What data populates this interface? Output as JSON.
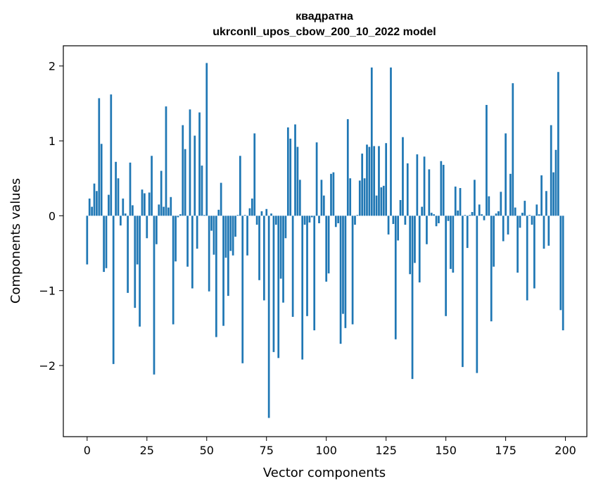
{
  "chart_data": {
    "type": "bar",
    "title_lines": [
      "квадратна",
      "ukrconll_upos_cbow_200_10_2022 model"
    ],
    "xlabel": "Vector components",
    "ylabel": "Components values",
    "xlim": [
      -9.95,
      208.95
    ],
    "ylim": [
      -2.95,
      2.27
    ],
    "xticks": [
      0,
      25,
      50,
      75,
      100,
      125,
      150,
      175,
      200
    ],
    "xtick_labels": [
      "0",
      "25",
      "50",
      "75",
      "100",
      "125",
      "150",
      "175",
      "200"
    ],
    "yticks": [
      -2,
      -1,
      0,
      1,
      2
    ],
    "ytick_labels": [
      "−2",
      "−1",
      "0",
      "1",
      "2"
    ],
    "bar_color": "#1f77b4",
    "values": [
      -0.65,
      0.23,
      0.12,
      0.43,
      0.33,
      1.57,
      0.96,
      -0.75,
      -0.7,
      0.28,
      1.62,
      -1.98,
      0.72,
      0.5,
      -0.13,
      0.23,
      0.03,
      -1.03,
      0.71,
      0.14,
      -1.23,
      -0.65,
      -1.48,
      0.35,
      0.3,
      -0.3,
      0.31,
      0.8,
      -2.12,
      -0.38,
      0.15,
      0.6,
      0.12,
      1.46,
      0.11,
      0.25,
      -1.45,
      -0.61,
      -0.02,
      0.02,
      1.21,
      0.89,
      -0.68,
      1.42,
      -0.97,
      1.07,
      -0.44,
      1.38,
      0.67,
      0.01,
      2.04,
      -1.01,
      -0.2,
      -0.52,
      -1.62,
      0.08,
      0.44,
      -1.47,
      -0.56,
      -1.07,
      -0.47,
      -0.53,
      -0.28,
      0.01,
      0.8,
      -1.97,
      0.01,
      -0.53,
      0.1,
      0.23,
      1.1,
      -0.12,
      -0.86,
      0.06,
      -1.13,
      0.09,
      -2.7,
      0.03,
      -1.82,
      -0.12,
      -1.9,
      -0.84,
      -1.16,
      -0.3,
      1.18,
      1.03,
      -1.35,
      1.22,
      0.92,
      0.48,
      -1.92,
      -0.12,
      -1.34,
      -0.09,
      -0.02,
      -1.53,
      0.98,
      -0.1,
      0.48,
      0.27,
      -0.88,
      -0.77,
      0.56,
      0.58,
      -0.15,
      -0.1,
      -1.71,
      -1.31,
      -1.5,
      1.29,
      0.5,
      -1.45,
      -0.12,
      0.01,
      0.47,
      0.83,
      0.5,
      0.95,
      0.92,
      1.98,
      0.93,
      0.27,
      0.93,
      0.38,
      0.4,
      0.97,
      -0.25,
      1.98,
      -0.11,
      -1.65,
      -0.33,
      0.21,
      1.05,
      -0.12,
      0.7,
      -0.78,
      -2.18,
      -0.63,
      0.82,
      -0.89,
      0.12,
      0.79,
      -0.38,
      0.62,
      0.04,
      0.02,
      -0.14,
      -0.1,
      0.73,
      0.68,
      -1.34,
      -0.07,
      -0.71,
      -0.76,
      0.39,
      0.07,
      0.37,
      -2.02,
      0.01,
      -0.43,
      0.01,
      0.05,
      0.48,
      -2.1,
      0.15,
      0.02,
      -0.06,
      1.48,
      0.26,
      -1.41,
      -0.68,
      0.03,
      0.06,
      0.32,
      -0.34,
      1.1,
      -0.25,
      0.56,
      1.77,
      0.11,
      -0.76,
      -0.16,
      0.04,
      0.2,
      -1.13,
      0.01,
      -0.12,
      -0.97,
      0.15,
      0.02,
      0.54,
      -0.44,
      0.33,
      -0.4,
      1.21,
      0.58,
      0.88,
      1.92,
      -1.26,
      -1.53
    ]
  }
}
